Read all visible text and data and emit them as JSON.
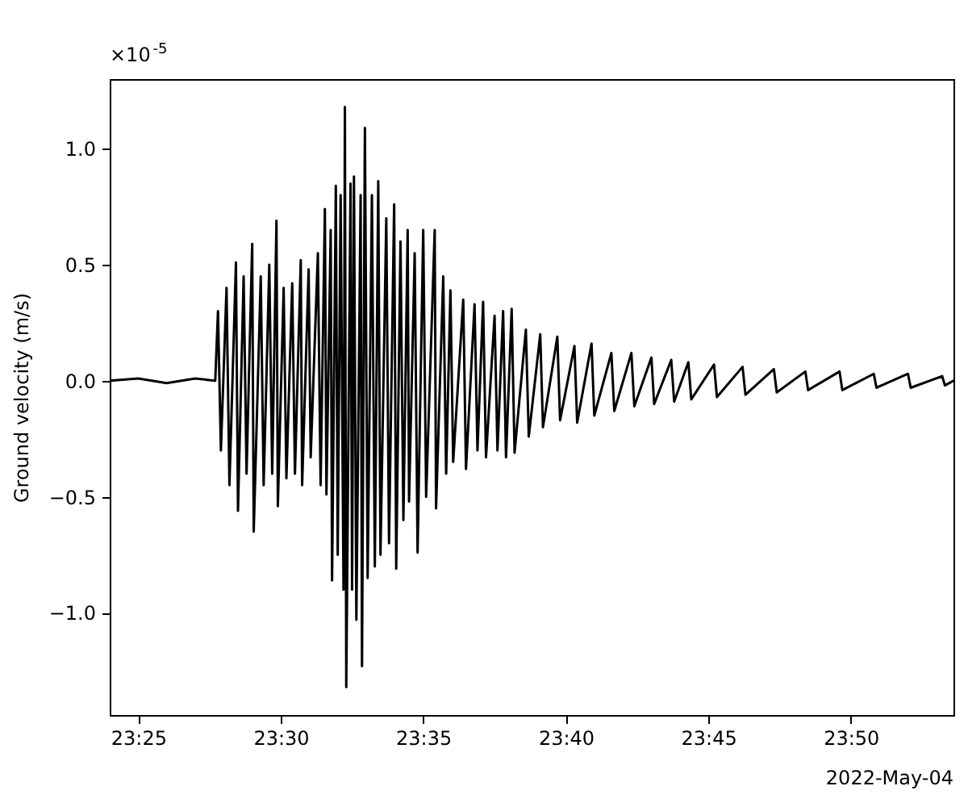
{
  "chart_data": {
    "type": "line",
    "ylabel": "Ground velocity (m/s)",
    "annotations": [
      "×10$^{-5}$",
      "2022-May-04"
    ],
    "xlim": [
      23.4,
      23.8933
    ],
    "xticks": [
      {
        "value": 23.4167,
        "label": "23:25"
      },
      {
        "value": 23.5,
        "label": "23:30"
      },
      {
        "value": 23.5833,
        "label": "23:35"
      },
      {
        "value": 23.6667,
        "label": "23:40"
      },
      {
        "value": 23.75,
        "label": "23:45"
      },
      {
        "value": 23.8333,
        "label": "23:50"
      }
    ],
    "ylim": [
      -1.44,
      1.3
    ],
    "yticks": [
      {
        "value": -1,
        "label": "−1.0"
      },
      {
        "value": -0.5,
        "label": "−0.5"
      },
      {
        "value": 0,
        "label": "0.0"
      },
      {
        "value": 0.5,
        "label": "0.5"
      },
      {
        "value": 1,
        "label": "1.0"
      }
    ],
    "x": [
      23.4,
      23.4167,
      23.4333,
      23.45,
      23.4617,
      23.4633,
      23.465,
      23.4683,
      23.47,
      23.4738,
      23.475,
      23.4783,
      23.48,
      23.4833,
      23.4842,
      23.4883,
      23.49,
      23.4933,
      23.495,
      23.4975,
      23.4983,
      23.5017,
      23.5033,
      23.5067,
      23.5083,
      23.5117,
      23.5125,
      23.5163,
      23.5175,
      23.5217,
      23.5233,
      23.5258,
      23.5267,
      23.5292,
      23.53,
      23.5322,
      23.5333,
      23.535,
      23.5367,
      23.5375,
      23.5383,
      23.5408,
      23.5417,
      23.5428,
      23.5442,
      23.5467,
      23.5475,
      23.5492,
      23.5508,
      23.5533,
      23.555,
      23.557,
      23.5583,
      23.5617,
      23.5633,
      23.5663,
      23.5675,
      23.57,
      23.5717,
      23.5742,
      23.575,
      23.5783,
      23.58,
      23.5833,
      23.585,
      23.59,
      23.5908,
      23.595,
      23.5967,
      23.5992,
      23.6008,
      23.6067,
      23.6083,
      23.6133,
      23.615,
      23.6183,
      23.62,
      23.625,
      23.6267,
      23.63,
      23.6317,
      23.635,
      23.6367,
      23.6433,
      23.645,
      23.6517,
      23.6533,
      23.6617,
      23.6633,
      23.6717,
      23.6733,
      23.6817,
      23.6833,
      23.6933,
      23.695,
      23.705,
      23.7067,
      23.7167,
      23.7183,
      23.7283,
      23.73,
      23.7383,
      23.74,
      23.7533,
      23.755,
      23.77,
      23.7717,
      23.7883,
      23.79,
      23.8067,
      23.8083,
      23.8267,
      23.8283,
      23.8467,
      23.8483,
      23.8667,
      23.8683,
      23.8867,
      23.8883,
      23.8933
    ],
    "series": [
      {
        "color": "#000000",
        "values": [
          0,
          0.01,
          -0.01,
          0.01,
          0,
          0.3,
          -0.3,
          0.4,
          -0.45,
          0.51,
          -0.56,
          0.45,
          -0.4,
          0.59,
          -0.65,
          0.45,
          -0.45,
          0.5,
          -0.4,
          0.69,
          -0.54,
          0.4,
          -0.42,
          0.42,
          -0.4,
          0.52,
          -0.45,
          0.48,
          -0.33,
          0.55,
          -0.45,
          0.74,
          -0.49,
          0.65,
          -0.86,
          0.84,
          -0.75,
          0.8,
          -0.9,
          1.18,
          -1.32,
          0.85,
          -0.9,
          0.88,
          -1.03,
          0.8,
          -1.23,
          1.09,
          -0.85,
          0.8,
          -0.8,
          0.86,
          -0.75,
          0.7,
          -0.7,
          0.76,
          -0.81,
          0.6,
          -0.6,
          0.65,
          -0.52,
          0.55,
          -0.74,
          0.65,
          -0.5,
          0.65,
          -0.55,
          0.45,
          -0.4,
          0.39,
          -0.35,
          0.35,
          -0.38,
          0.33,
          -0.3,
          0.34,
          -0.33,
          0.28,
          -0.3,
          0.3,
          -0.33,
          0.31,
          -0.31,
          0.22,
          -0.24,
          0.2,
          -0.2,
          0.19,
          -0.17,
          0.15,
          -0.18,
          0.16,
          -0.15,
          0.12,
          -0.13,
          0.12,
          -0.11,
          0.1,
          -0.1,
          0.09,
          -0.09,
          0.08,
          -0.08,
          0.07,
          -0.07,
          0.06,
          -0.06,
          0.05,
          -0.05,
          0.04,
          -0.04,
          0.04,
          -0.04,
          0.03,
          -0.03,
          0.03,
          -0.03,
          0.02,
          -0.02,
          0
        ]
      }
    ]
  }
}
